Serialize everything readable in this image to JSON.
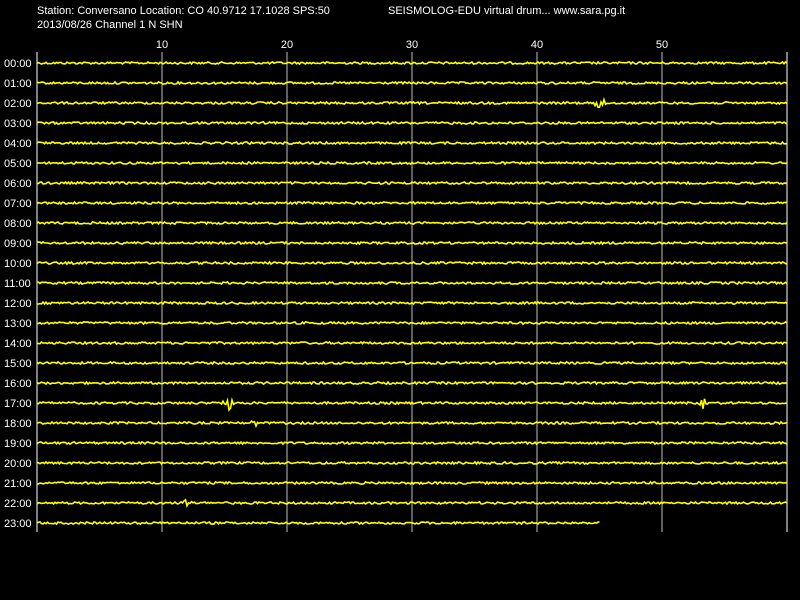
{
  "header": {
    "station_line": "Station: Conversano Location: CO 40.9712 17.1028 SPS:50",
    "brand_line": "SEISMOLOG-EDU virtual drum... www.sara.pg.it",
    "date_line": "2013/08/26  Channel 1 N SHN"
  },
  "colors": {
    "background": "#000000",
    "trace": "#ffff00",
    "grid": "#ffffff",
    "text": "#ffffff"
  },
  "chart_data": {
    "type": "line",
    "title": "",
    "xlabel": "",
    "ylabel": "",
    "x_ticks": [
      "10",
      "20",
      "30",
      "40",
      "50"
    ],
    "xlim": [
      0,
      60
    ],
    "grid": true,
    "row_labels": [
      "00:00",
      "01:00",
      "02:00",
      "03:00",
      "04:00",
      "05:00",
      "06:00",
      "07:00",
      "08:00",
      "09:00",
      "10:00",
      "11:00",
      "12:00",
      "13:00",
      "14:00",
      "15:00",
      "16:00",
      "17:00",
      "18:00",
      "19:00",
      "20:00",
      "21:00",
      "22:00",
      "23:00"
    ],
    "last_row_end_minute": 45,
    "events": [
      {
        "row": 2,
        "minute": 45,
        "amplitude": 8
      },
      {
        "row": 17,
        "minute": 15.3,
        "amplitude": 10
      },
      {
        "row": 17,
        "minute": 53.3,
        "amplitude": 6
      },
      {
        "row": 18,
        "minute": 17.5,
        "amplitude": 3
      },
      {
        "row": 22,
        "minute": 12.0,
        "amplitude": 6
      }
    ]
  }
}
